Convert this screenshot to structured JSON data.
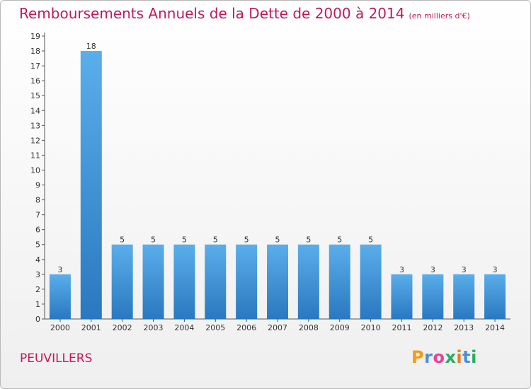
{
  "chart_data": {
    "type": "bar",
    "title": "Remboursements Annuels de la Dette de 2000 à 2014",
    "subtitle": "(en milliers d'€)",
    "categories": [
      "2000",
      "2001",
      "2002",
      "2003",
      "2004",
      "2005",
      "2006",
      "2007",
      "2008",
      "2009",
      "2010",
      "2011",
      "2012",
      "2013",
      "2014"
    ],
    "values": [
      3,
      18,
      5,
      5,
      5,
      5,
      5,
      5,
      5,
      5,
      5,
      3,
      3,
      3,
      3
    ],
    "ylim": [
      0,
      19
    ],
    "yticks": [
      0,
      1,
      2,
      3,
      4,
      5,
      6,
      7,
      8,
      9,
      10,
      11,
      12,
      13,
      14,
      15,
      16,
      17,
      18,
      19
    ],
    "xlabel": "",
    "ylabel": "",
    "grid": false,
    "bar_color": "#3b8fd9"
  },
  "place": "PEUVILLERS",
  "brand": {
    "letters": [
      "P",
      "r",
      "o",
      "x",
      "i",
      "t",
      "i"
    ],
    "colors": [
      "#f39c12",
      "#4a90d9",
      "#e84393",
      "#27ae60",
      "#e67e22",
      "#4a90d9",
      "#27ae60"
    ]
  },
  "colors": {
    "title": "#c2185b"
  }
}
